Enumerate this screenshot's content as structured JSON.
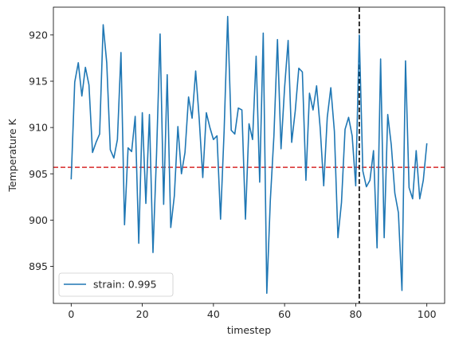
{
  "chart_data": {
    "type": "line",
    "xlabel": "timestep",
    "ylabel": "Temperature K",
    "xlim": [
      -5,
      105
    ],
    "ylim": [
      891,
      923
    ],
    "xticks": [
      0,
      20,
      40,
      60,
      80,
      100
    ],
    "yticks": [
      895,
      900,
      905,
      910,
      915,
      920
    ],
    "grid": false,
    "legend_position": "lower-left",
    "series": [
      {
        "name": "strain: 0.995",
        "color": "#1f77b4",
        "x": [
          0,
          1,
          2,
          3,
          4,
          5,
          6,
          7,
          8,
          9,
          10,
          11,
          12,
          13,
          14,
          15,
          16,
          17,
          18,
          19,
          20,
          21,
          22,
          23,
          24,
          25,
          26,
          27,
          28,
          29,
          30,
          31,
          32,
          33,
          34,
          35,
          36,
          37,
          38,
          39,
          40,
          41,
          42,
          43,
          44,
          45,
          46,
          47,
          48,
          49,
          50,
          51,
          52,
          53,
          54,
          55,
          56,
          57,
          58,
          59,
          60,
          61,
          62,
          63,
          64,
          65,
          66,
          67,
          68,
          69,
          70,
          71,
          72,
          73,
          74,
          75,
          76,
          77,
          78,
          79,
          80,
          81,
          82,
          83,
          84,
          85,
          86,
          87,
          88,
          89,
          90,
          91,
          92,
          93,
          94,
          95,
          96,
          97,
          98,
          99,
          100
        ],
        "y": [
          904.4,
          914.9,
          917.0,
          913.4,
          916.5,
          914.6,
          907.3,
          908.4,
          909.3,
          921.1,
          917.0,
          907.6,
          906.7,
          908.7,
          918.1,
          899.5,
          907.8,
          907.4,
          911.2,
          897.5,
          911.6,
          901.8,
          911.4,
          896.5,
          907.1,
          920.1,
          901.7,
          915.7,
          899.2,
          902.6,
          910.1,
          905.0,
          907.3,
          913.3,
          911.0,
          916.1,
          910.9,
          904.6,
          911.6,
          910.0,
          908.7,
          909.1,
          900.1,
          909.6,
          922.0,
          909.7,
          909.3,
          912.1,
          911.9,
          900.1,
          910.4,
          908.7,
          917.7,
          904.1,
          920.2,
          892.1,
          902.2,
          909.1,
          919.5,
          907.7,
          914.3,
          919.4,
          908.4,
          911.8,
          916.4,
          916.0,
          904.3,
          913.7,
          911.9,
          914.5,
          910.0,
          903.7,
          911.1,
          914.3,
          909.6,
          898.1,
          901.9,
          909.8,
          911.1,
          909.1,
          903.7,
          920.0,
          905.3,
          903.6,
          904.3,
          907.5,
          897.0,
          917.4,
          898.1,
          911.4,
          908.1,
          902.9,
          900.8,
          892.4,
          917.2,
          903.5,
          902.3,
          907.5,
          902.3,
          904.3,
          908.3
        ]
      }
    ],
    "reference_lines": [
      {
        "orientation": "horizontal",
        "value": 905.7,
        "color": "#d62728",
        "style": "dashed"
      },
      {
        "orientation": "vertical",
        "value": 81,
        "color": "#000000",
        "style": "dashed"
      }
    ]
  }
}
